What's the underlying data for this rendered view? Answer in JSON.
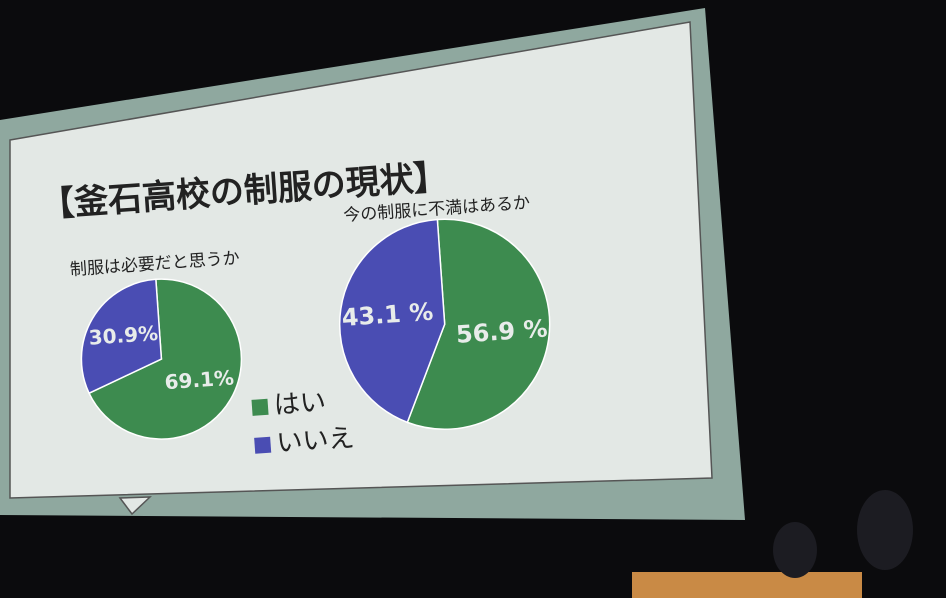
{
  "slide": {
    "title": "【釜石高校の制服の現状】"
  },
  "chart_data": [
    {
      "type": "pie",
      "title": "制服は必要だと思うか",
      "categories": [
        "はい",
        "いいえ"
      ],
      "values": [
        69.1,
        30.9
      ],
      "value_labels": [
        "69.1%",
        "30.9%"
      ],
      "colors": [
        "#3d8b4f",
        "#4a4db3"
      ],
      "legend": "right"
    },
    {
      "type": "pie",
      "title": "今の制服に不満はあるか",
      "values": [
        56.9,
        43.1
      ],
      "value_labels": [
        "56.9 %",
        "43.1 %"
      ],
      "colors": [
        "#3d8b4f",
        "#4a4db3"
      ]
    }
  ]
}
